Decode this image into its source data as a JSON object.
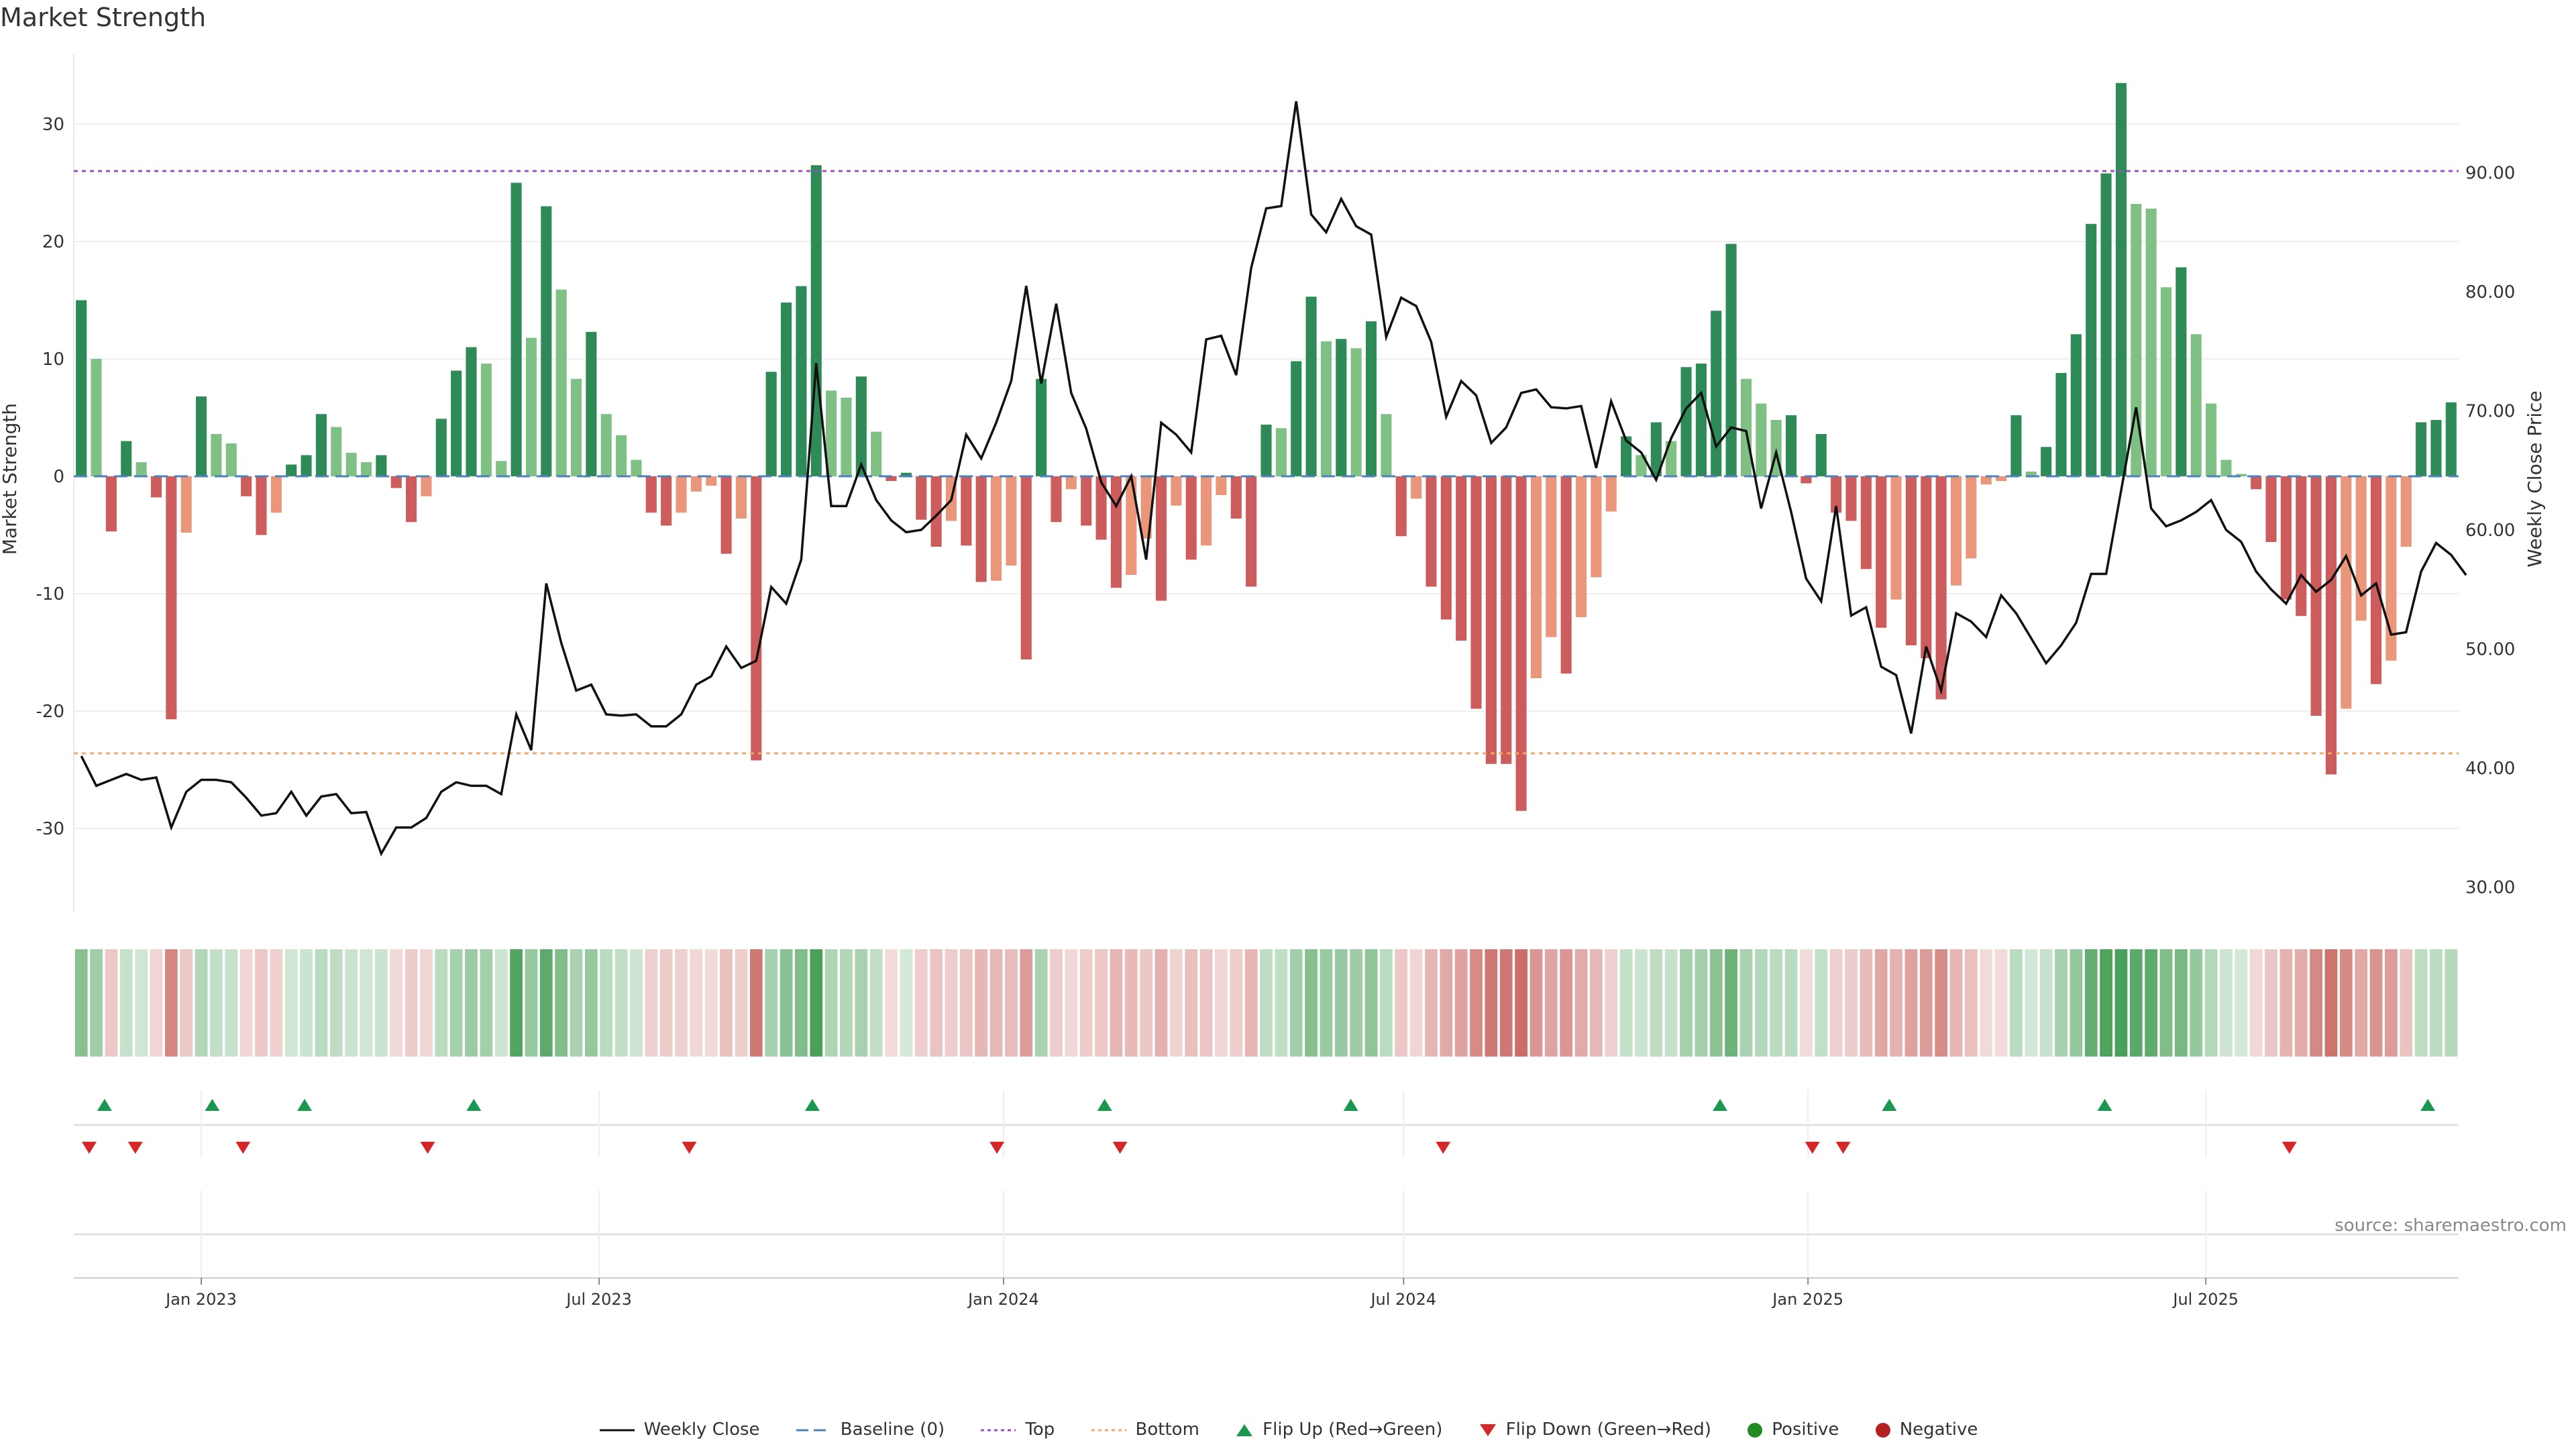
{
  "title": "Market Strength",
  "source": "source: sharemaestro.com",
  "legend": {
    "weekly_close": "Weekly Close",
    "baseline": "Baseline (0)",
    "top": "Top",
    "bottom": "Bottom",
    "flip_up": "Flip Up (Red→Green)",
    "flip_down": "Flip Down (Green→Red)",
    "positive": "Positive",
    "negative": "Negative"
  },
  "colors": {
    "strong_pos": "#2e8b57",
    "weak_pos": "#7fc184",
    "strong_neg": "#cd5c5c",
    "weak_neg": "#e9967a",
    "line": "#111111",
    "top": "#9b4dca",
    "bottom": "#f0a868",
    "flip_up": "#1a9850",
    "flip_down": "#d62728",
    "positive": "#228b22",
    "negative": "#b22222"
  },
  "chart_data": {
    "type": "bar",
    "title": "Market Strength",
    "ylabel": "Market Strength",
    "y2label": "Weekly Close Price",
    "ylim": [
      -36,
      36
    ],
    "y2lim": [
      29,
      100
    ],
    "yticks": [
      -30,
      -20,
      -10,
      0,
      10,
      20,
      30
    ],
    "y2ticks": [
      "30.00",
      "40.00",
      "50.00",
      "60.00",
      "70.00",
      "80.00",
      "90.00"
    ],
    "x_start": "2022-11-04",
    "x_end": "2025-10-24",
    "xticks": [
      {
        "date": "2023-01-01",
        "label": "Jan 2023"
      },
      {
        "date": "2023-07-01",
        "label": "Jul 2023"
      },
      {
        "date": "2024-01-01",
        "label": "Jan 2024"
      },
      {
        "date": "2024-07-01",
        "label": "Jul 2024"
      },
      {
        "date": "2025-01-01",
        "label": "Jan 2025"
      },
      {
        "date": "2025-07-01",
        "label": "Jul 2025"
      }
    ],
    "top_line": 26,
    "bottom_line": -23.6,
    "strength": [
      15,
      10,
      -4.7,
      3,
      1.2,
      -1.8,
      -20.7,
      -4.8,
      6.8,
      3.6,
      2.8,
      -1.7,
      -5.0,
      -3.1,
      1.0,
      1.8,
      5.3,
      4.2,
      2.0,
      1.2,
      1.8,
      -1.0,
      -3.9,
      -1.7,
      4.9,
      9.0,
      11.0,
      9.6,
      1.3,
      25.0,
      11.8,
      23.0,
      15.9,
      8.3,
      12.3,
      5.3,
      3.5,
      1.4,
      -3.1,
      -4.2,
      -3.1,
      -1.3,
      -0.8,
      -6.6,
      -3.6,
      -24.2,
      8.9,
      14.8,
      16.2,
      26.5,
      7.3,
      6.7,
      8.5,
      3.8,
      -0.4,
      0.3,
      -3.7,
      -6.0,
      -3.8,
      -5.9,
      -9.0,
      -8.9,
      -7.6,
      -15.6,
      8.3,
      -3.9,
      -1.1,
      -4.2,
      -5.4,
      -9.5,
      -8.4,
      -5.3,
      -10.6,
      -2.5,
      -7.1,
      -5.9,
      -1.6,
      -3.6,
      -9.4,
      4.4,
      4.1,
      9.8,
      15.3,
      11.5,
      11.7,
      10.9,
      13.2,
      5.3,
      -5.1,
      -1.9,
      -9.4,
      -12.2,
      -14.0,
      -19.8,
      -24.5,
      -24.5,
      -28.5,
      -17.2,
      -13.7,
      -16.8,
      -12.0,
      -8.6,
      -3.0,
      3.4,
      1.8,
      4.6,
      3.0,
      9.3,
      9.6,
      14.1,
      19.8,
      8.3,
      6.2,
      4.8,
      5.2,
      -0.6,
      3.6,
      -3.1,
      -3.8,
      -7.9,
      -12.9,
      -10.5,
      -14.4,
      -15.5,
      -19.0,
      -9.3,
      -7.0,
      -0.7,
      -0.4,
      5.2,
      0.4,
      2.5,
      8.8,
      12.1,
      21.5,
      25.8,
      33.5,
      23.2,
      22.8,
      16.1,
      17.8,
      12.1,
      6.2,
      1.4,
      0.2,
      -1.1,
      -5.6,
      -10.5,
      -11.9,
      -20.4,
      -25.4,
      -19.8,
      -12.3,
      -17.7,
      -15.7,
      -6.0,
      4.6,
      4.8,
      6.3
    ],
    "close": [
      41,
      38.5,
      39,
      39.5,
      39,
      39.2,
      35,
      38,
      39,
      39,
      38.8,
      37.5,
      36,
      36.2,
      38,
      36,
      37.6,
      37.8,
      36.2,
      36.3,
      32.8,
      35,
      35,
      35.8,
      38,
      38.8,
      38.5,
      38.5,
      37.8,
      44.5,
      41.5,
      55.5,
      50.5,
      46.5,
      47,
      44.5,
      44.4,
      44.5,
      43.5,
      43.5,
      44.5,
      47,
      47.7,
      50.2,
      48.4,
      49,
      55.2,
      53.8,
      57.5,
      74,
      62,
      62,
      65.5,
      62.5,
      60.8,
      59.8,
      60,
      61.2,
      62.5,
      68,
      66,
      69,
      72.5,
      80.5,
      72.3,
      79,
      71.5,
      68.5,
      64,
      62,
      64.5,
      57.5,
      69,
      68,
      66.5,
      76,
      76.3,
      73,
      82,
      87,
      87.2,
      96,
      86.5,
      85,
      87.8,
      85.5,
      84.8,
      76.2,
      79.5,
      78.8,
      75.8,
      69.5,
      72.5,
      71.3,
      67.3,
      68.6,
      71.5,
      71.8,
      70.3,
      70.2,
      70.4,
      65.2,
      70.8,
      67.5,
      66.5,
      64.2,
      67.7,
      70.2,
      71.5,
      67,
      68.6,
      68.3,
      61.8,
      66.5,
      61.5,
      55.9,
      54,
      62,
      52.8,
      53.5,
      48.5,
      47.8,
      42.9,
      50.2,
      46.5,
      53,
      52.3,
      51,
      54.5,
      53,
      50.9,
      48.8,
      50.3,
      52.2,
      56.3,
      56.3,
      63.3,
      70.3,
      61.8,
      60.3,
      60.8,
      61.5,
      62.5,
      60,
      59,
      56.5,
      55,
      53.8,
      56.2,
      54.8,
      55.8,
      57.8,
      54.5,
      55.5,
      51.2,
      51.4,
      56.5,
      58.9,
      57.9,
      56.2
    ],
    "flip_up": [
      "2022-11-18",
      "2023-01-06",
      "2023-02-17",
      "2023-05-05",
      "2023-10-06",
      "2024-02-16",
      "2024-06-07",
      "2024-11-22",
      "2025-02-07",
      "2025-05-16",
      "2025-10-10"
    ],
    "flip_down": [
      "2022-11-11",
      "2022-12-02",
      "2023-01-20",
      "2023-04-14",
      "2023-08-11",
      "2023-12-29",
      "2024-02-23",
      "2024-07-19",
      "2025-01-03",
      "2025-01-17",
      "2025-08-08"
    ]
  }
}
